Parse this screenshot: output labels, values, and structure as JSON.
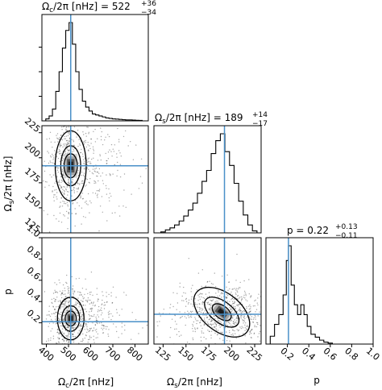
{
  "chart_data": {
    "type": "corner",
    "parameters": [
      "Omega_c",
      "Omega_s",
      "p"
    ],
    "truths": {
      "Omega_c": 510,
      "Omega_s": 192,
      "p": 0.21
    },
    "truth_color": "#4a90c8",
    "panels": {
      "hist_Omega_c": {
        "title_text": "Ω",
        "title_sub": "c",
        "title_rest": "/2π [nHz] = 522",
        "title_sup": "+36",
        "title_inf": "−34",
        "xlim": [
          380,
          860
        ],
        "x": [
          390,
          405,
          420,
          435,
          450,
          465,
          480,
          495,
          510,
          525,
          540,
          555,
          570,
          585,
          600,
          615,
          630,
          645,
          660,
          675,
          690,
          705,
          720,
          735,
          750,
          765,
          780,
          795,
          810,
          825,
          840
        ],
        "counts": [
          0.0,
          0.02,
          0.05,
          0.12,
          0.3,
          0.5,
          0.74,
          0.92,
          1.0,
          0.78,
          0.5,
          0.32,
          0.2,
          0.14,
          0.1,
          0.07,
          0.06,
          0.05,
          0.04,
          0.03,
          0.025,
          0.02,
          0.018,
          0.015,
          0.012,
          0.01,
          0.01,
          0.008,
          0.006,
          0.005,
          0.0
        ]
      },
      "hist_Omega_s": {
        "title_text": "Ω",
        "title_sub": "s",
        "title_rest": "/2π [nHz] = 189",
        "title_sup": "+14",
        "title_inf": "−17",
        "xlim": [
          115,
          232
        ],
        "x": [
          125,
          130,
          135,
          140,
          145,
          150,
          155,
          160,
          165,
          170,
          175,
          180,
          185,
          190,
          195,
          200,
          205,
          210,
          215,
          220,
          225
        ],
        "counts": [
          0.01,
          0.03,
          0.05,
          0.08,
          0.12,
          0.17,
          0.23,
          0.3,
          0.4,
          0.52,
          0.63,
          0.8,
          0.93,
          1.0,
          0.82,
          0.68,
          0.5,
          0.32,
          0.18,
          0.08,
          0.02
        ]
      },
      "hist_p": {
        "title_text": "p = 0.22",
        "title_sup": "+0.13",
        "title_inf": "−0.11",
        "xlim": [
          0.0,
          1.0
        ],
        "x": [
          0.02,
          0.06,
          0.1,
          0.14,
          0.18,
          0.2,
          0.22,
          0.25,
          0.28,
          0.31,
          0.34,
          0.37,
          0.4,
          0.44,
          0.48,
          0.52,
          0.56,
          0.6,
          0.64
        ],
        "counts": [
          0.0,
          0.08,
          0.2,
          0.3,
          0.5,
          0.85,
          1.0,
          0.6,
          0.4,
          0.3,
          0.4,
          0.3,
          0.18,
          0.1,
          0.07,
          0.04,
          0.02,
          0.01,
          0.0
        ]
      },
      "scatter_Omega_s_vs_Omega_c": {
        "xlim": [
          380,
          860
        ],
        "ylim": [
          125,
          232
        ],
        "center": [
          510,
          192
        ],
        "contour_radii": [
          [
            30,
            12
          ],
          [
            45,
            20
          ],
          [
            70,
            35
          ]
        ]
      },
      "scatter_p_vs_Omega_c": {
        "xlim": [
          380,
          860
        ],
        "ylim": [
          0.0,
          1.0
        ],
        "center": [
          510,
          0.24
        ],
        "contour_radii": [
          [
            25,
            0.07
          ],
          [
            40,
            0.12
          ],
          [
            60,
            0.2
          ]
        ]
      },
      "scatter_p_vs_Omega_s": {
        "xlim": [
          115,
          232
        ],
        "ylim": [
          0.0,
          1.0
        ],
        "center": [
          189,
          0.3
        ],
        "angle_deg": -38,
        "contour_radii": [
          [
            12,
            0.06
          ],
          [
            22,
            0.1
          ],
          [
            35,
            0.18
          ]
        ]
      }
    },
    "ticks": {
      "Omega_c": [
        "400",
        "500",
        "600",
        "700",
        "800"
      ],
      "Omega_c_values": [
        400,
        500,
        600,
        700,
        800
      ],
      "Omega_s": [
        "125",
        "150",
        "175",
        "200",
        "225"
      ],
      "Omega_s_values": [
        125,
        150,
        175,
        200,
        225
      ],
      "p": [
        "0.2",
        "0.4",
        "0.6",
        "0.8",
        "1.0"
      ],
      "p_values": [
        0.2,
        0.4,
        0.6,
        0.8,
        1.0
      ],
      "p_x": [
        "0.2",
        "0.4",
        "0.6",
        "0.8",
        "1.0"
      ],
      "p_x_values": [
        0.2,
        0.4,
        0.6,
        0.8,
        1.0
      ]
    },
    "axis_labels": {
      "x_Omega_c": {
        "main": "Ω",
        "sub": "c",
        "rest": "/2π [nHz]"
      },
      "x_Omega_s": {
        "main": "Ω",
        "sub": "s",
        "rest": "/2π [nHz]"
      },
      "x_p": "p",
      "y_Omega_s": {
        "main": "Ω",
        "sub": "s",
        "rest": "/2π [nHz]"
      },
      "y_p": "p"
    }
  }
}
